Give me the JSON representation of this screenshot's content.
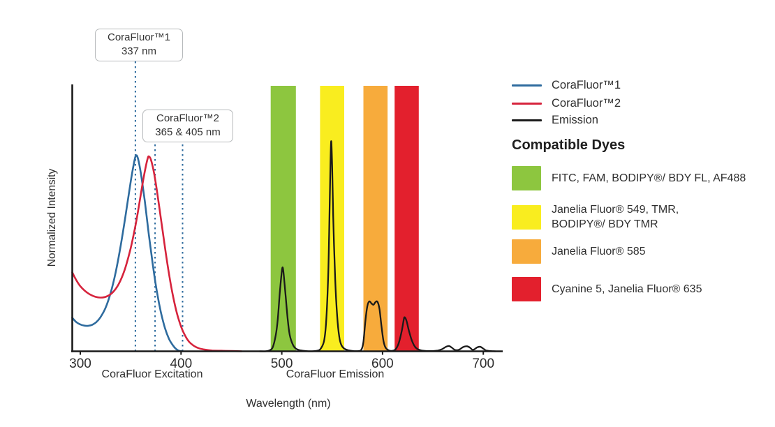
{
  "chart_data": {
    "type": "line",
    "title": "",
    "xlabel": "Wavelength (nm)",
    "ylabel": "Normalized Intensity",
    "x_axis": {
      "min": 292,
      "max": 718,
      "ticks": [
        300,
        400,
        500,
        600,
        700
      ],
      "grid": false
    },
    "y_axis": {
      "min": 0,
      "max": 1,
      "ticks": [],
      "note": "unlabeled normalized intensity axis"
    },
    "region_labels": [
      {
        "label": "CoraFluor Excitation"
      },
      {
        "label": "CoraFluor Emission"
      }
    ],
    "legend": {
      "position": "top-right",
      "items": [
        {
          "label": "CoraFluor™1",
          "color": "#2e6b9e"
        },
        {
          "label": "CoraFluor™2",
          "color": "#d6233c"
        },
        {
          "label": "Emission",
          "color": "#1a1a1a"
        }
      ]
    },
    "series": [
      {
        "name": "CoraFluor™1 excitation",
        "color": "#2e6b9e",
        "style": "solid",
        "peak_nm": 355,
        "points": [
          [
            292,
            0.126
          ],
          [
            296,
            0.11
          ],
          [
            300,
            0.101
          ],
          [
            304,
            0.0965
          ],
          [
            308,
            0.096
          ],
          [
            312,
            0.1
          ],
          [
            316,
            0.11
          ],
          [
            320,
            0.128
          ],
          [
            325,
            0.163
          ],
          [
            330,
            0.218
          ],
          [
            335,
            0.295
          ],
          [
            340,
            0.395
          ],
          [
            345,
            0.512
          ],
          [
            350,
            0.638
          ],
          [
            353,
            0.703
          ],
          [
            355,
            0.735
          ],
          [
            357,
            0.728
          ],
          [
            360,
            0.672
          ],
          [
            364,
            0.565
          ],
          [
            368,
            0.44
          ],
          [
            372,
            0.325
          ],
          [
            376,
            0.225
          ],
          [
            380,
            0.147
          ],
          [
            384,
            0.088
          ],
          [
            388,
            0.047
          ],
          [
            392,
            0.022
          ],
          [
            395,
            0.009
          ],
          [
            398,
            0.002
          ],
          [
            401,
            0
          ]
        ]
      },
      {
        "name": "CoraFluor™2 excitation",
        "color": "#d6233c",
        "style": "solid",
        "peak_nm": 368,
        "points": [
          [
            292,
            0.297
          ],
          [
            296,
            0.268
          ],
          [
            300,
            0.245
          ],
          [
            305,
            0.226
          ],
          [
            310,
            0.213
          ],
          [
            315,
            0.205
          ],
          [
            320,
            0.202
          ],
          [
            326,
            0.206
          ],
          [
            332,
            0.221
          ],
          [
            338,
            0.252
          ],
          [
            344,
            0.306
          ],
          [
            350,
            0.388
          ],
          [
            355,
            0.478
          ],
          [
            359,
            0.565
          ],
          [
            362,
            0.635
          ],
          [
            365,
            0.695
          ],
          [
            367,
            0.727
          ],
          [
            368,
            0.733
          ],
          [
            370,
            0.722
          ],
          [
            373,
            0.675
          ],
          [
            376,
            0.605
          ],
          [
            380,
            0.5
          ],
          [
            384,
            0.392
          ],
          [
            388,
            0.292
          ],
          [
            392,
            0.208
          ],
          [
            396,
            0.142
          ],
          [
            400,
            0.093
          ],
          [
            404,
            0.059
          ],
          [
            408,
            0.036
          ],
          [
            413,
            0.02
          ],
          [
            418,
            0.011
          ],
          [
            424,
            0.006
          ],
          [
            431,
            0.003
          ],
          [
            440,
            0.002
          ],
          [
            450,
            0.001
          ],
          [
            460,
            0
          ]
        ]
      },
      {
        "name": "Emission",
        "color": "#1a1a1a",
        "style": "solid",
        "peaks_nm": [
          501,
          549,
          591,
          622
        ],
        "points": [
          [
            478,
            0
          ],
          [
            484,
            0
          ],
          [
            488,
            0.004
          ],
          [
            491,
            0.015
          ],
          [
            494,
            0.06
          ],
          [
            496,
            0.12
          ],
          [
            498,
            0.22
          ],
          [
            500,
            0.3
          ],
          [
            501,
            0.315
          ],
          [
            502,
            0.285
          ],
          [
            504,
            0.2
          ],
          [
            506,
            0.115
          ],
          [
            508,
            0.06
          ],
          [
            511,
            0.025
          ],
          [
            514,
            0.01
          ],
          [
            518,
            0.004
          ],
          [
            524,
            0.001
          ],
          [
            530,
            0
          ],
          [
            536,
            0.003
          ],
          [
            539,
            0.012
          ],
          [
            542,
            0.04
          ],
          [
            544,
            0.11
          ],
          [
            546,
            0.28
          ],
          [
            547,
            0.44
          ],
          [
            548,
            0.65
          ],
          [
            549,
            0.79
          ],
          [
            550,
            0.69
          ],
          [
            551,
            0.51
          ],
          [
            553,
            0.27
          ],
          [
            555,
            0.13
          ],
          [
            557,
            0.055
          ],
          [
            559,
            0.025
          ],
          [
            562,
            0.01
          ],
          [
            566,
            0.004
          ],
          [
            571,
            0.001
          ],
          [
            576,
            0.001
          ],
          [
            579,
            0.006
          ],
          [
            581,
            0.035
          ],
          [
            583,
            0.115
          ],
          [
            585,
            0.172
          ],
          [
            587,
            0.188
          ],
          [
            589,
            0.18
          ],
          [
            591,
            0.175
          ],
          [
            593,
            0.185
          ],
          [
            595,
            0.186
          ],
          [
            597,
            0.158
          ],
          [
            599,
            0.092
          ],
          [
            601,
            0.038
          ],
          [
            603,
            0.014
          ],
          [
            606,
            0.004
          ],
          [
            610,
            0.002
          ],
          [
            613,
            0.008
          ],
          [
            616,
            0.03
          ],
          [
            619,
            0.075
          ],
          [
            621,
            0.118
          ],
          [
            622,
            0.128
          ],
          [
            624,
            0.112
          ],
          [
            626,
            0.08
          ],
          [
            629,
            0.042
          ],
          [
            632,
            0.018
          ],
          [
            635,
            0.008
          ],
          [
            639,
            0.003
          ],
          [
            644,
            0.001
          ],
          [
            650,
            0.001
          ],
          [
            655,
            0.003
          ],
          [
            659,
            0.008
          ],
          [
            663,
            0.017
          ],
          [
            666,
            0.02
          ],
          [
            669,
            0.013
          ],
          [
            672,
            0.005
          ],
          [
            676,
            0.006
          ],
          [
            680,
            0.016
          ],
          [
            684,
            0.019
          ],
          [
            687,
            0.013
          ],
          [
            689,
            0.006
          ],
          [
            691,
            0.007
          ],
          [
            694,
            0.015
          ],
          [
            697,
            0.017
          ],
          [
            700,
            0.01
          ],
          [
            703,
            0.003
          ],
          [
            707,
            0.001
          ],
          [
            712,
            0
          ]
        ]
      }
    ],
    "emission_bands": [
      {
        "range_nm": [
          489,
          514
        ],
        "color": "#8dc63f",
        "dyes": "FITC, FAM, BODIPY®/ BDY FL, AF488"
      },
      {
        "range_nm": [
          538,
          562
        ],
        "color": "#f9ed1f",
        "dyes": "Janelia Fluor® 549, TMR, BODIPY®/ BDY TMR"
      },
      {
        "range_nm": [
          581,
          605
        ],
        "color": "#f7ab3c",
        "dyes": "Janelia Fluor® 585"
      },
      {
        "range_nm": [
          612,
          636
        ],
        "color": "#e3202d",
        "dyes": "Cyanine 5, Janelia Fluor® 635"
      }
    ],
    "annotations": [
      {
        "label_line1": "CoraFluor™1",
        "label_line2": "337 nm",
        "marker_lines_nm": [
          354.7
        ]
      },
      {
        "label_line1": "CoraFluor™2",
        "label_line2": "365 & 405 nm",
        "marker_lines_nm": [
          374.2,
          401.5
        ]
      }
    ],
    "marker_line_color": "#2e6b9e"
  },
  "dye_panel": {
    "heading": "Compatible Dyes",
    "items": [
      {
        "color": "#8dc63f",
        "line1": "FITC, FAM, BODIPY®/ BDY FL, AF488",
        "line2": ""
      },
      {
        "color": "#f9ed1f",
        "line1": "Janelia Fluor® 549, TMR,",
        "line2": "BODIPY®/ BDY TMR"
      },
      {
        "color": "#f7ab3c",
        "line1": "Janelia Fluor® 585",
        "line2": ""
      },
      {
        "color": "#e3202d",
        "line1": "Cyanine 5, Janelia Fluor® 635",
        "line2": ""
      }
    ]
  }
}
